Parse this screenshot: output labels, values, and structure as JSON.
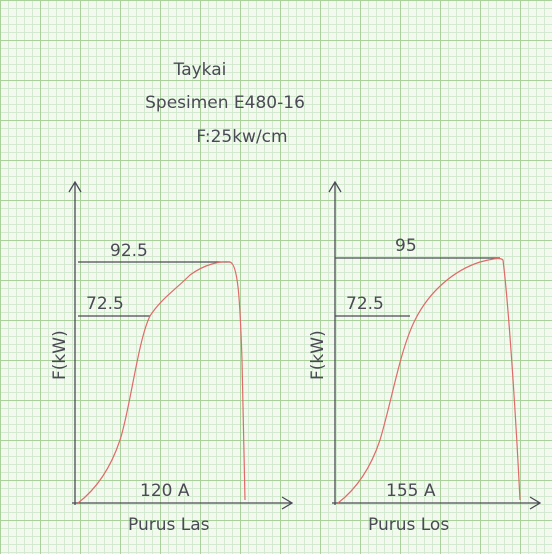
{
  "header": {
    "title": "Taykai",
    "specimen": "Spesimen E480-16",
    "force": "F:25kw/cm"
  },
  "panels": [
    {
      "y_label": "F(kW)",
      "max_label": "92.5",
      "yield_label": "72.5",
      "current": "120 A",
      "x_label": "Purus Las"
    },
    {
      "y_label": "F(kW)",
      "max_label": "95",
      "yield_label": "72.5",
      "current": "155 A",
      "x_label": "Purus Los"
    }
  ]
}
